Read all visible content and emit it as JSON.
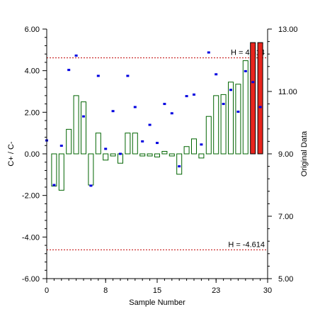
{
  "chart_data": {
    "type": "bar",
    "title": "",
    "xlabel": "Sample Number",
    "ylabel": "C+ / C-",
    "ylabel_right": "Original Data",
    "xlim": [
      0,
      30
    ],
    "ylim": [
      -6,
      6
    ],
    "ylim_right": [
      5,
      13
    ],
    "grid": false,
    "x_ticks": [
      {
        "value": 0,
        "label": "0"
      },
      {
        "value": 8,
        "label": "8"
      },
      {
        "value": 15,
        "label": "15"
      },
      {
        "value": 23,
        "label": "23"
      },
      {
        "value": 30,
        "label": "30"
      }
    ],
    "y_ticks": [
      {
        "value": 6,
        "label": "6.00"
      },
      {
        "value": 4,
        "label": "4.00"
      },
      {
        "value": 2,
        "label": "2.00"
      },
      {
        "value": 0,
        "label": "0.00"
      },
      {
        "value": -2,
        "label": "-2.00"
      },
      {
        "value": -4,
        "label": "-4.00"
      },
      {
        "value": -6,
        "label": "-6.00"
      }
    ],
    "y_ticks_right": [
      {
        "value": 13,
        "label": "13.00"
      },
      {
        "value": 11,
        "label": "11.00"
      },
      {
        "value": 9,
        "label": "9.00"
      },
      {
        "value": 7,
        "label": "7.00"
      },
      {
        "value": 5,
        "label": "5.00"
      }
    ],
    "limits": [
      {
        "value": 4.614,
        "label": "H = 4.614"
      },
      {
        "value": -4.614,
        "label": "H = -4.614"
      }
    ],
    "series": [
      {
        "name": "C+ / C-",
        "kind": "bars",
        "axis": "left",
        "x": [
          1,
          2,
          3,
          4,
          5,
          6,
          7,
          8,
          9,
          10,
          11,
          12,
          13,
          14,
          15,
          16,
          17,
          18,
          19,
          20,
          21,
          22,
          23,
          24,
          25,
          26,
          27,
          28,
          29
        ],
        "values": [
          -1.55,
          -1.75,
          1.18,
          2.8,
          2.5,
          -1.5,
          1.0,
          -0.3,
          0.0,
          -0.45,
          1.0,
          1.0,
          -0.1,
          0.0,
          -0.15,
          0.12,
          0.0,
          -0.98,
          0.35,
          0.72,
          -0.2,
          1.8,
          2.8,
          2.85,
          3.45,
          3.35,
          4.48,
          5.35,
          5.35
        ]
      },
      {
        "name": "Original Data",
        "kind": "points",
        "axis": "right",
        "x": [
          0,
          1,
          2,
          3,
          4,
          5,
          6,
          7,
          8,
          9,
          10,
          11,
          12,
          13,
          14,
          15,
          16,
          17,
          18,
          19,
          20,
          21,
          22,
          23,
          24,
          25,
          26,
          27,
          28,
          29
        ],
        "values": [
          9.43,
          8.0,
          9.26,
          11.69,
          12.15,
          10.2,
          7.98,
          11.5,
          9.16,
          10.37,
          9.0,
          11.5,
          10.5,
          9.4,
          9.93,
          9.35,
          10.6,
          10.3,
          8.6,
          10.85,
          10.9,
          9.3,
          12.25,
          11.55,
          10.6,
          11.05,
          10.35,
          11.65,
          11.3,
          10.5
        ]
      }
    ],
    "colors": {
      "bar_outline": "#006400",
      "bar_alarm": "#e8251e",
      "points": "#0000e0",
      "limit_line": "#c00000",
      "axis": "#000000"
    }
  }
}
